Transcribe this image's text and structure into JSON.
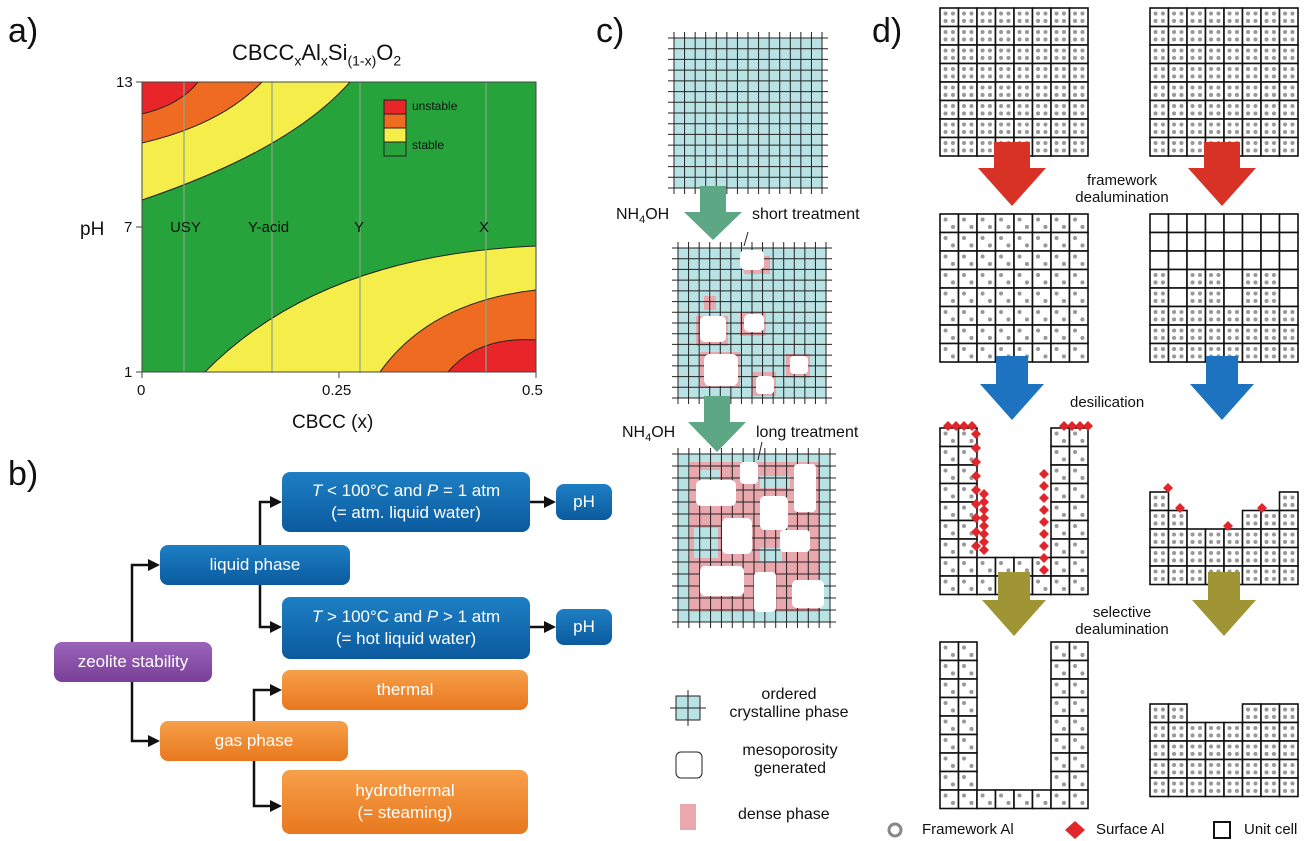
{
  "panels": {
    "a": "a)",
    "b": "b)",
    "c": "c)",
    "d": "d)"
  },
  "panel_a": {
    "title_main": "CBCC",
    "title_sub1": "x",
    "title_mid": "Al",
    "title_sub2": "x",
    "title_mid2": "Si",
    "title_sub3": "(1-x)",
    "title_end": "O",
    "title_sub4": "2",
    "ylabel": "pH",
    "xlabel": "CBCC (x)",
    "yticks": [
      "13",
      "7",
      "1"
    ],
    "xticks": [
      "0",
      "0.25",
      "0.5"
    ],
    "zeolites": [
      "USY",
      "Y-acid",
      "Y",
      "X"
    ],
    "legend": [
      "unstable",
      "",
      "stable",
      "stable"
    ],
    "legend_colors": [
      "#e8262a",
      "#ee6b21",
      "#f5ee4a",
      "#27a33c"
    ]
  },
  "chart_data": {
    "type": "heatmap",
    "title": "CBCCxAlxSi(1-x)O2",
    "xlabel": "CBCC (x)",
    "ylabel": "pH",
    "xlim": [
      0,
      0.5
    ],
    "ylim": [
      1,
      13
    ],
    "xticks": [
      "0",
      "0.25",
      "0.5"
    ],
    "yticks": [
      "1",
      "7",
      "13"
    ],
    "legend": [
      "unstable",
      "stable",
      "stable"
    ],
    "annotations": [
      {
        "text": "USY",
        "x": 0.05,
        "y": 7
      },
      {
        "text": "Y-acid",
        "x": 0.165,
        "y": 7
      },
      {
        "text": "Y",
        "x": 0.28,
        "y": 7
      },
      {
        "text": "X",
        "x": 0.44,
        "y": 7
      }
    ]
  },
  "panel_b": {
    "root": "zeolite stability",
    "liquid": "liquid phase",
    "gas": "gas phase",
    "cond1_line1": "< 100°C and",
    "cond1_line2": "= 1 atm",
    "cond1_line3": "(= atm. liquid water)",
    "cond2_line1": "> 100°C and",
    "cond2_line2": "> 1 atm",
    "cond2_line3": "(= hot liquid water)",
    "T": "T",
    "P": "P",
    "ph1": "pH",
    "ph2": "pH",
    "thermal": "thermal",
    "hydro1": "hydrothermal",
    "hydro2": "(= steaming)"
  },
  "panel_c": {
    "nh4oh_1": "NH",
    "nh4oh_sub": "4",
    "nh4oh_end": "OH",
    "short": "short treatment",
    "long": "long treatment",
    "legend1a": "ordered",
    "legend1b": "crystalline phase",
    "legend2a": "mesoporosity",
    "legend2b": "generated",
    "legend3": "dense phase"
  },
  "panel_d": {
    "step1a": "framework",
    "step1b": "dealumination",
    "step2": "desilication",
    "step3a": "selective",
    "step3b": "dealumination",
    "legend_framework": "Framework Al",
    "legend_surface": "Surface Al",
    "legend_unit": "Unit cell"
  }
}
